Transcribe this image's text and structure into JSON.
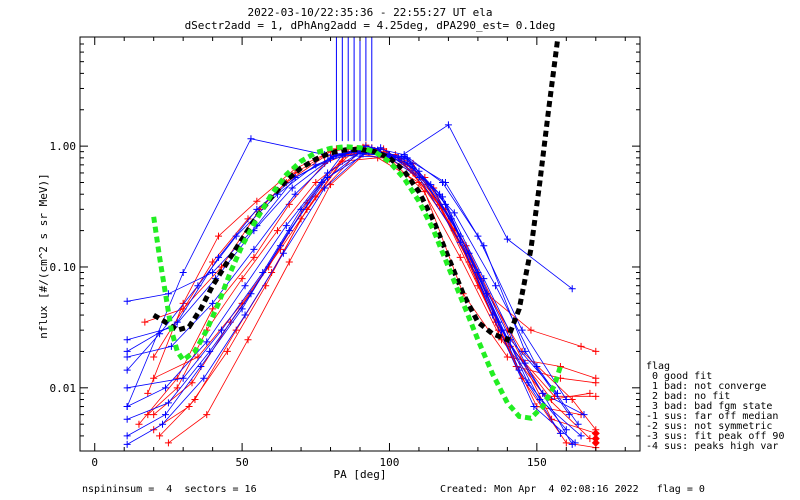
{
  "header": {
    "line1": "2022-03-10/22:35:36 - 22:55:27 UT ela",
    "line2": "dSectr2add = 1, dPhAng2add = 4.25deg, dPA290_est=   0.1deg"
  },
  "legend": {
    "title": "flag",
    "items": [
      " 0 good fit",
      " 1 bad: not converge",
      " 2 bad: no fit",
      " 3 bad: bad fgm state",
      "-1 sus: far off median",
      "-2 sus: not symmetric",
      "-3 sus: fit peak off 90",
      "-4 sus: peaks high var"
    ]
  },
  "footer": {
    "left": "nspininsum =  4  sectors = 16",
    "right": "Created: Mon Apr  4 02:08:16 2022   flag = 0"
  },
  "colors": {
    "red": "#ff0000",
    "blue": "#0000ff",
    "black": "#000000",
    "green": "#22ee22"
  },
  "chart_data": {
    "type": "line",
    "title": "2022-03-10/22:35:36 - 22:55:27 UT ela",
    "subtitle": "dSectr2add = 1, dPhAng2add = 4.25deg, dPA290_est=   0.1deg",
    "xlabel": "PA [deg]",
    "ylabel": "nflux [#/(cm^2 s sr MeV)]",
    "xlim": [
      -5,
      185
    ],
    "ylim": [
      0.003,
      8
    ],
    "yscale": "log",
    "xticks": [
      0,
      50,
      100,
      150
    ],
    "xtick_labels": [
      "0",
      "50",
      "100",
      "150"
    ],
    "yticks": [
      0.01,
      0.1,
      1.0
    ],
    "ytick_labels": [
      "0.01",
      "0.10",
      "1.00"
    ],
    "grid": false,
    "series": [
      {
        "color": "red",
        "marker": "+",
        "x": [
          20,
          40,
          52,
          65,
          78,
          88,
          100,
          112,
          125,
          140,
          158,
          170
        ],
        "y": [
          0.018,
          0.11,
          0.25,
          0.5,
          0.82,
          0.88,
          0.78,
          0.42,
          0.06,
          0.018,
          0.015,
          0.012
        ]
      },
      {
        "color": "red",
        "marker": "+",
        "x": [
          18,
          30,
          42,
          55,
          68,
          82,
          95,
          108,
          122,
          137,
          155,
          168
        ],
        "y": [
          0.009,
          0.05,
          0.18,
          0.35,
          0.65,
          0.95,
          0.92,
          0.6,
          0.2,
          0.03,
          0.008,
          0.009
        ]
      },
      {
        "color": "red",
        "marker": "+",
        "x": [
          18,
          28,
          38,
          50,
          62,
          75,
          88,
          102,
          115,
          128,
          145,
          162,
          170
        ],
        "y": [
          0.006,
          0.01,
          0.03,
          0.08,
          0.2,
          0.5,
          0.9,
          0.85,
          0.45,
          0.1,
          0.02,
          0.008,
          0.0045
        ]
      },
      {
        "color": "red",
        "marker": "+",
        "x": [
          20,
          32,
          45,
          58,
          70,
          84,
          96,
          110,
          124,
          138,
          152,
          168
        ],
        "y": [
          0.0045,
          0.007,
          0.02,
          0.07,
          0.25,
          0.75,
          0.8,
          0.5,
          0.12,
          0.025,
          0.009,
          0.0038
        ]
      },
      {
        "color": "red",
        "marker": "+",
        "x": [
          22,
          34,
          48,
          60,
          72,
          86,
          98,
          112,
          126,
          140,
          155,
          170
        ],
        "y": [
          0.004,
          0.008,
          0.03,
          0.09,
          0.3,
          0.9,
          0.95,
          0.55,
          0.15,
          0.03,
          0.0055,
          0.0042
        ]
      },
      {
        "color": "red",
        "marker": "+",
        "x": [
          17,
          30,
          43,
          56,
          68,
          80,
          92,
          106,
          119,
          133,
          148,
          165,
          170
        ],
        "y": [
          0.035,
          0.045,
          0.1,
          0.3,
          0.6,
          0.9,
          1.02,
          0.7,
          0.3,
          0.06,
          0.03,
          0.022,
          0.02
        ]
      },
      {
        "color": "red",
        "marker": "+",
        "x": [
          20,
          35,
          50,
          63,
          75,
          90,
          103,
          117,
          130,
          145,
          160,
          170
        ],
        "y": [
          0.012,
          0.018,
          0.05,
          0.14,
          0.38,
          0.92,
          0.8,
          0.33,
          0.08,
          0.012,
          0.0035,
          0.0032
        ]
      },
      {
        "color": "red",
        "marker": "+",
        "x": [
          25,
          38,
          52,
          66,
          80,
          94,
          108,
          122,
          136,
          150,
          165
        ],
        "y": [
          0.0035,
          0.006,
          0.025,
          0.11,
          0.48,
          0.97,
          0.72,
          0.2,
          0.035,
          0.007,
          0.006
        ]
      },
      {
        "color": "red",
        "marker": "+",
        "x": [
          15,
          28,
          40,
          54,
          66,
          78,
          91,
          104,
          117,
          130,
          143,
          158,
          170
        ],
        "y": [
          0.005,
          0.012,
          0.045,
          0.12,
          0.33,
          0.72,
          0.98,
          0.75,
          0.32,
          0.07,
          0.015,
          0.012,
          0.011
        ]
      },
      {
        "color": "red",
        "marker": "+",
        "x": [
          20,
          33,
          46,
          59,
          72,
          85,
          99,
          113,
          127,
          141,
          156,
          170
        ],
        "y": [
          0.006,
          0.011,
          0.035,
          0.1,
          0.34,
          0.85,
          0.9,
          0.48,
          0.11,
          0.022,
          0.0085,
          0.0085
        ]
      },
      {
        "color": "blue",
        "marker": "+",
        "x": [
          11,
          25,
          40,
          55,
          68,
          80,
          92,
          105,
          118,
          130,
          145,
          160
        ],
        "y": [
          0.052,
          0.06,
          0.09,
          0.22,
          0.55,
          0.8,
          1.0,
          0.85,
          0.5,
          0.18,
          0.03,
          0.008
        ]
      },
      {
        "color": "blue",
        "marker": "+",
        "x": [
          11,
          28,
          42,
          55,
          68,
          80,
          93,
          106,
          119,
          132,
          146,
          161
        ],
        "y": [
          0.02,
          0.035,
          0.12,
          0.3,
          0.55,
          0.78,
          0.9,
          0.78,
          0.5,
          0.15,
          0.02,
          0.006
        ]
      },
      {
        "color": "blue",
        "marker": "+",
        "x": [
          11,
          22,
          35,
          48,
          62,
          75,
          88,
          100,
          114,
          127,
          141,
          157
        ],
        "y": [
          0.014,
          0.028,
          0.07,
          0.18,
          0.4,
          0.7,
          0.92,
          0.85,
          0.48,
          0.13,
          0.025,
          0.009
        ]
      },
      {
        "color": "blue",
        "marker": "+",
        "x": [
          11,
          30,
          43,
          57,
          70,
          84,
          97,
          110,
          124,
          137,
          151,
          165
        ],
        "y": [
          0.01,
          0.012,
          0.03,
          0.09,
          0.3,
          0.85,
          0.97,
          0.62,
          0.18,
          0.035,
          0.008,
          0.004
        ]
      },
      {
        "color": "blue",
        "marker": "+",
        "x": [
          11,
          30,
          53,
          78,
          103,
          120,
          140,
          162
        ],
        "y": [
          0.007,
          0.09,
          1.15,
          0.85,
          0.8,
          1.5,
          0.17,
          0.066
        ]
      },
      {
        "color": "blue",
        "marker": "+",
        "x": [
          11,
          24,
          38,
          51,
          65,
          79,
          92,
          106,
          119,
          133,
          147,
          160
        ],
        "y": [
          0.007,
          0.01,
          0.024,
          0.07,
          0.22,
          0.6,
          0.95,
          0.8,
          0.33,
          0.06,
          0.011,
          0.0045
        ]
      },
      {
        "color": "blue",
        "marker": "+",
        "x": [
          11,
          25,
          39,
          53,
          66,
          79,
          93,
          107,
          121,
          135,
          149,
          163
        ],
        "y": [
          0.0055,
          0.0075,
          0.02,
          0.06,
          0.2,
          0.55,
          0.9,
          0.72,
          0.25,
          0.04,
          0.007,
          0.0035
        ]
      },
      {
        "color": "blue",
        "marker": "+",
        "x": [
          11,
          27,
          41,
          54,
          67,
          81,
          94,
          108,
          122,
          136,
          150,
          164
        ],
        "y": [
          0.025,
          0.032,
          0.08,
          0.2,
          0.45,
          0.82,
          0.96,
          0.66,
          0.28,
          0.07,
          0.015,
          0.005
        ]
      },
      {
        "color": "blue",
        "marker": "+",
        "x": [
          11,
          24,
          36,
          50,
          63,
          77,
          90,
          104,
          117,
          130,
          144,
          158
        ],
        "y": [
          0.004,
          0.006,
          0.015,
          0.045,
          0.15,
          0.5,
          0.88,
          0.8,
          0.4,
          0.09,
          0.014,
          0.0042
        ]
      },
      {
        "color": "blue",
        "marker": "+",
        "x": [
          11,
          26,
          40,
          54,
          68,
          82,
          96,
          110,
          124,
          138,
          152,
          166
        ],
        "y": [
          0.018,
          0.022,
          0.05,
          0.14,
          0.4,
          0.86,
          0.93,
          0.55,
          0.16,
          0.03,
          0.009,
          0.006
        ]
      },
      {
        "color": "blue",
        "marker": "+",
        "x": [
          11,
          23,
          37,
          51,
          64,
          78,
          91,
          105,
          118,
          132,
          146,
          162
        ],
        "y": [
          0.0034,
          0.005,
          0.012,
          0.04,
          0.13,
          0.45,
          0.86,
          0.82,
          0.38,
          0.08,
          0.016,
          0.0034
        ]
      }
    ],
    "spikes": {
      "color": "blue",
      "x": [
        82,
        84,
        86,
        88,
        90,
        92,
        94
      ],
      "from_y": 1.1,
      "to_y": 8
    },
    "median_fit": {
      "color": "black",
      "style": "dashed",
      "x": [
        20,
        24,
        28,
        32,
        36,
        40,
        45,
        50,
        55,
        60,
        65,
        70,
        75,
        80,
        85,
        90,
        95,
        100,
        105,
        110,
        115,
        120,
        125,
        130,
        135,
        140,
        144,
        148,
        151,
        154,
        157
      ],
      "y": [
        0.04,
        0.035,
        0.03,
        0.032,
        0.045,
        0.07,
        0.11,
        0.17,
        0.26,
        0.38,
        0.52,
        0.66,
        0.78,
        0.88,
        0.93,
        0.94,
        0.9,
        0.8,
        0.62,
        0.42,
        0.24,
        0.12,
        0.06,
        0.035,
        0.028,
        0.025,
        0.045,
        0.14,
        0.5,
        2.0,
        7.5
      ]
    },
    "fit_curve": {
      "color": "green",
      "style": "dashed",
      "x": [
        20,
        22,
        24,
        26,
        28,
        30,
        34,
        38,
        42,
        46,
        50,
        55,
        60,
        65,
        70,
        75,
        80,
        85,
        90,
        95,
        100,
        105,
        110,
        115,
        120,
        125,
        130,
        135,
        140,
        144,
        148,
        152,
        156,
        158
      ],
      "y": [
        0.26,
        0.12,
        0.06,
        0.03,
        0.02,
        0.017,
        0.02,
        0.03,
        0.05,
        0.09,
        0.15,
        0.25,
        0.4,
        0.58,
        0.75,
        0.88,
        0.96,
        0.99,
        0.97,
        0.9,
        0.74,
        0.54,
        0.35,
        0.2,
        0.1,
        0.05,
        0.025,
        0.013,
        0.0075,
        0.0058,
        0.0056,
        0.007,
        0.0105,
        0.015
      ]
    },
    "endpoints": {
      "color": "red",
      "marker": "diamond",
      "x": [
        170,
        170,
        170
      ],
      "y": [
        0.0038,
        0.0042,
        0.0035
      ]
    }
  }
}
